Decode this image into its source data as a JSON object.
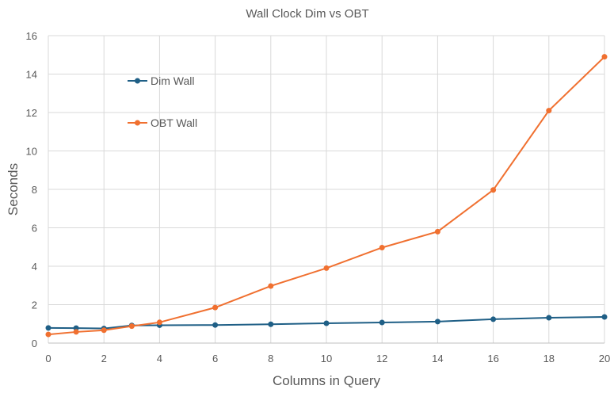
{
  "chart_data": {
    "type": "line",
    "title": "Wall Clock Dim vs OBT",
    "xlabel": "Columns in Query",
    "ylabel": "Seconds",
    "xlim": [
      0,
      20
    ],
    "ylim": [
      0,
      16
    ],
    "xticks": [
      0,
      2,
      4,
      6,
      8,
      10,
      12,
      14,
      16,
      18,
      20
    ],
    "yticks": [
      0,
      2,
      4,
      6,
      8,
      10,
      12,
      14,
      16
    ],
    "grid": true,
    "legend": "top-left",
    "x": [
      0,
      1,
      2,
      3,
      4,
      6,
      8,
      10,
      12,
      14,
      16,
      18,
      20
    ],
    "series": [
      {
        "name": "Dim Wall",
        "color": "#1f5f86",
        "values": [
          0.79,
          0.78,
          0.76,
          0.92,
          0.93,
          0.94,
          0.98,
          1.03,
          1.07,
          1.12,
          1.24,
          1.32,
          1.36
        ]
      },
      {
        "name": "OBT Wall",
        "color": "#f07030",
        "values": [
          0.45,
          0.58,
          0.67,
          0.88,
          1.08,
          1.85,
          2.97,
          3.9,
          4.97,
          5.8,
          7.97,
          12.1,
          14.9
        ]
      }
    ]
  }
}
